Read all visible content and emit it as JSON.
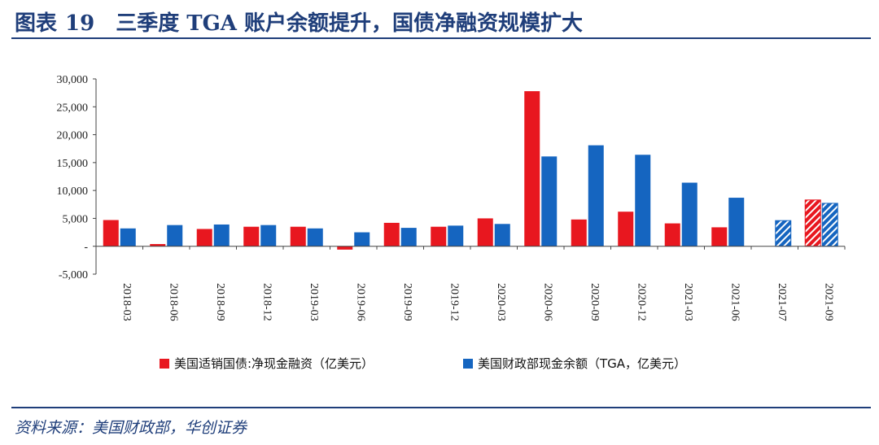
{
  "header": {
    "label": "图表",
    "number": "19",
    "title": "三季度 TGA 账户余额提升，国债净融资规模扩大"
  },
  "source": "资料来源：美国财政部，华创证券",
  "colors": {
    "red": "#e8171f",
    "blue": "#1565c0",
    "title": "#1f3e7a"
  },
  "chart_data": {
    "type": "bar",
    "categories": [
      "2018-03",
      "2018-06",
      "2018-09",
      "2018-12",
      "2019-03",
      "2019-06",
      "2019-09",
      "2019-12",
      "2020-03",
      "2020-06",
      "2020-09",
      "2020-12",
      "2021-03",
      "2021-06",
      "2021-07",
      "2021-09"
    ],
    "series": [
      {
        "name": "美国适销国债:净现金融资（亿美元）",
        "color": "#e8171f",
        "values": [
          4700,
          400,
          3100,
          3500,
          3500,
          -600,
          4200,
          3500,
          5000,
          27800,
          4800,
          6200,
          4100,
          3400,
          null,
          8300
        ],
        "hatched_index": 15
      },
      {
        "name": "美国财政部现金余额（TGA，亿美元）",
        "color": "#1565c0",
        "values": [
          3200,
          3800,
          3900,
          3800,
          3200,
          2500,
          3300,
          3700,
          4000,
          16100,
          18100,
          16400,
          11400,
          8700,
          4600,
          7700
        ],
        "hatched_index": [
          14,
          15
        ]
      }
    ],
    "y_ticks": [
      "30,000",
      "25,000",
      "20,000",
      "15,000",
      "10,000",
      "5,000",
      "-",
      "-5,000"
    ],
    "ylim": [
      -5000,
      30000
    ],
    "legend_position": "bottom",
    "grid": false
  }
}
